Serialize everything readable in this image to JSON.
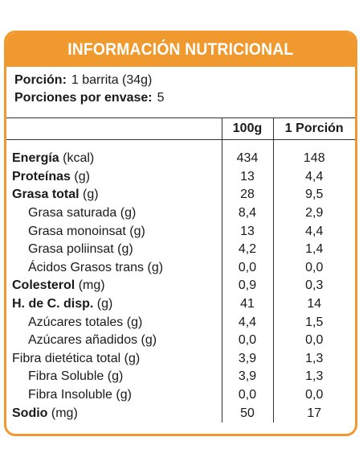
{
  "title": "INFORMACIÓN NUTRICIONAL",
  "serving": {
    "portion_label": "Porción:",
    "portion_value": "1 barrita (34g)",
    "per_package_label": "Porciones por envase:",
    "per_package_value": "5"
  },
  "columns": {
    "per100": "100g",
    "per_portion": "1 Porción"
  },
  "rows": [
    {
      "name": "Energía",
      "unit": "(kcal)",
      "bold": true,
      "indent": false,
      "g100": "434",
      "portion": "148"
    },
    {
      "name": "Proteínas",
      "unit": "(g)",
      "bold": true,
      "indent": false,
      "g100": "13",
      "portion": "4,4"
    },
    {
      "name": "Grasa total",
      "unit": "(g)",
      "bold": true,
      "indent": false,
      "g100": "28",
      "portion": "9,5"
    },
    {
      "name": "Grasa saturada",
      "unit": "(g)",
      "bold": false,
      "indent": true,
      "g100": "8,4",
      "portion": "2,9"
    },
    {
      "name": "Grasa monoinsat",
      "unit": "(g)",
      "bold": false,
      "indent": true,
      "g100": "13",
      "portion": "4,4"
    },
    {
      "name": "Grasa poliinsat",
      "unit": "(g)",
      "bold": false,
      "indent": true,
      "g100": "4,2",
      "portion": "1,4"
    },
    {
      "name": "Ácidos Grasos trans",
      "unit": "(g)",
      "bold": false,
      "indent": true,
      "g100": "0,0",
      "portion": "0,0"
    },
    {
      "name": "Colesterol",
      "unit": "(mg)",
      "bold": true,
      "indent": false,
      "g100": "0,9",
      "portion": "0,3"
    },
    {
      "name": "H. de C. disp.",
      "unit": "(g)",
      "bold": true,
      "indent": false,
      "g100": "41",
      "portion": "14"
    },
    {
      "name": "Azúcares totales",
      "unit": "(g)",
      "bold": false,
      "indent": true,
      "g100": "4,4",
      "portion": "1,5"
    },
    {
      "name": "Azúcares añadidos",
      "unit": "(g)",
      "bold": false,
      "indent": true,
      "g100": "0,0",
      "portion": "0,0"
    },
    {
      "name": "Fibra dietética total",
      "unit": "(g)",
      "bold": false,
      "indent": false,
      "g100": "3,9",
      "portion": "1,3"
    },
    {
      "name": "Fibra Soluble",
      "unit": "(g)",
      "bold": false,
      "indent": true,
      "g100": "3,9",
      "portion": "1,3"
    },
    {
      "name": "Fibra Insoluble",
      "unit": "(g)",
      "bold": false,
      "indent": true,
      "g100": "0,0",
      "portion": "0,0"
    },
    {
      "name": "Sodio",
      "unit": "(mg)",
      "bold": true,
      "indent": false,
      "g100": "50",
      "portion": "17"
    }
  ],
  "colors": {
    "accent": "#f0992f",
    "text": "#1a1a1a"
  }
}
